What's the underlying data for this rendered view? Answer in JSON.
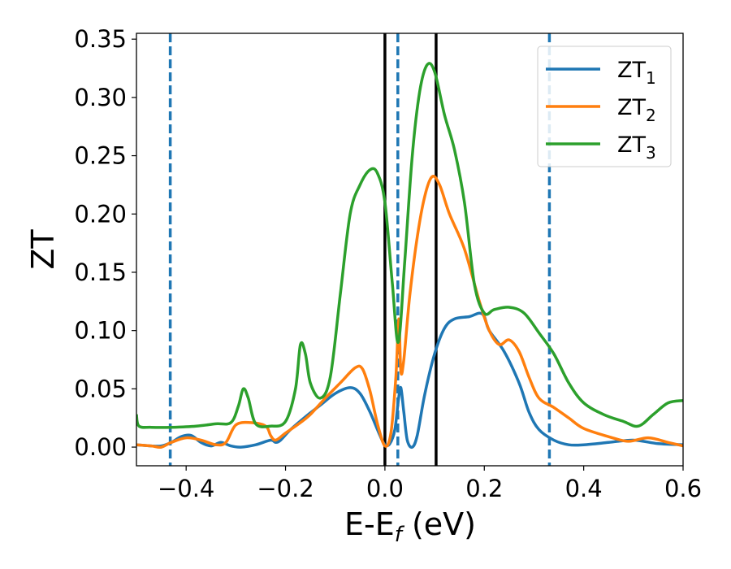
{
  "chart_data": {
    "type": "line",
    "xlabel_main": "E-E",
    "xlabel_sub": "f",
    "xlabel_unit": " (eV)",
    "ylabel": "ZT",
    "xlim": [
      -0.5,
      0.6
    ],
    "ylim": [
      -0.016,
      0.355
    ],
    "xticks": [
      -0.4,
      -0.2,
      0.0,
      0.2,
      0.4,
      0.6
    ],
    "xtick_labels": [
      "−0.4",
      "−0.2",
      "0.0",
      "0.2",
      "0.4",
      "0.6"
    ],
    "yticks": [
      0.0,
      0.05,
      0.1,
      0.15,
      0.2,
      0.25,
      0.3,
      0.35
    ],
    "ytick_labels": [
      "0.00",
      "0.05",
      "0.10",
      "0.15",
      "0.20",
      "0.25",
      "0.30",
      "0.35"
    ],
    "grid": false,
    "legend_position": "top-right",
    "vlines_solid": [
      0.0,
      0.103
    ],
    "vlines_dashed": [
      -0.432,
      0.026,
      0.331
    ],
    "vline_solid_color": "#000000",
    "vline_dashed_color": "#1f77b4",
    "series": [
      {
        "name_main": "ZT",
        "name_sub": "1",
        "color": "#1f77b4",
        "points": [
          [
            -0.5,
            0.002
          ],
          [
            -0.47,
            0.001
          ],
          [
            -0.45,
            0.001
          ],
          [
            -0.43,
            0.004
          ],
          [
            -0.41,
            0.009
          ],
          [
            -0.39,
            0.01
          ],
          [
            -0.37,
            0.004
          ],
          [
            -0.35,
            0.001
          ],
          [
            -0.33,
            0.004
          ],
          [
            -0.31,
            0.001
          ],
          [
            -0.29,
            0.0
          ],
          [
            -0.26,
            0.002
          ],
          [
            -0.23,
            0.006
          ],
          [
            -0.22,
            0.004
          ],
          [
            -0.21,
            0.006
          ],
          [
            -0.19,
            0.015
          ],
          [
            -0.16,
            0.026
          ],
          [
            -0.13,
            0.036
          ],
          [
            -0.1,
            0.046
          ],
          [
            -0.07,
            0.051
          ],
          [
            -0.05,
            0.046
          ],
          [
            -0.03,
            0.03
          ],
          [
            -0.01,
            0.01
          ],
          [
            0.0,
            0.002
          ],
          [
            0.01,
            0.003
          ],
          [
            0.02,
            0.015
          ],
          [
            0.027,
            0.04
          ],
          [
            0.032,
            0.051
          ],
          [
            0.038,
            0.03
          ],
          [
            0.045,
            0.006
          ],
          [
            0.055,
            0.0
          ],
          [
            0.065,
            0.01
          ],
          [
            0.08,
            0.045
          ],
          [
            0.1,
            0.08
          ],
          [
            0.12,
            0.102
          ],
          [
            0.14,
            0.11
          ],
          [
            0.17,
            0.112
          ],
          [
            0.19,
            0.115
          ],
          [
            0.2,
            0.112
          ],
          [
            0.21,
            0.1
          ],
          [
            0.24,
            0.082
          ],
          [
            0.27,
            0.055
          ],
          [
            0.29,
            0.03
          ],
          [
            0.31,
            0.015
          ],
          [
            0.34,
            0.006
          ],
          [
            0.37,
            0.002
          ],
          [
            0.4,
            0.002
          ],
          [
            0.45,
            0.004
          ],
          [
            0.5,
            0.006
          ],
          [
            0.55,
            0.003
          ],
          [
            0.6,
            0.002
          ]
        ]
      },
      {
        "name_main": "ZT",
        "name_sub": "2",
        "color": "#ff7f0e",
        "points": [
          [
            -0.5,
            0.002
          ],
          [
            -0.47,
            0.001
          ],
          [
            -0.45,
            0.0
          ],
          [
            -0.43,
            0.004
          ],
          [
            -0.4,
            0.008
          ],
          [
            -0.37,
            0.006
          ],
          [
            -0.34,
            0.002
          ],
          [
            -0.32,
            0.004
          ],
          [
            -0.3,
            0.019
          ],
          [
            -0.27,
            0.021
          ],
          [
            -0.24,
            0.018
          ],
          [
            -0.23,
            0.01
          ],
          [
            -0.22,
            0.006
          ],
          [
            -0.2,
            0.012
          ],
          [
            -0.17,
            0.021
          ],
          [
            -0.15,
            0.028
          ],
          [
            -0.12,
            0.042
          ],
          [
            -0.09,
            0.055
          ],
          [
            -0.06,
            0.068
          ],
          [
            -0.045,
            0.067
          ],
          [
            -0.03,
            0.048
          ],
          [
            -0.015,
            0.02
          ],
          [
            0.0,
            0.001
          ],
          [
            0.012,
            0.012
          ],
          [
            0.022,
            0.06
          ],
          [
            0.028,
            0.11
          ],
          [
            0.032,
            0.065
          ],
          [
            0.038,
            0.075
          ],
          [
            0.05,
            0.13
          ],
          [
            0.065,
            0.18
          ],
          [
            0.08,
            0.215
          ],
          [
            0.095,
            0.232
          ],
          [
            0.11,
            0.225
          ],
          [
            0.13,
            0.2
          ],
          [
            0.16,
            0.17
          ],
          [
            0.19,
            0.125
          ],
          [
            0.21,
            0.1
          ],
          [
            0.23,
            0.088
          ],
          [
            0.25,
            0.092
          ],
          [
            0.27,
            0.082
          ],
          [
            0.29,
            0.06
          ],
          [
            0.31,
            0.042
          ],
          [
            0.34,
            0.034
          ],
          [
            0.37,
            0.025
          ],
          [
            0.4,
            0.016
          ],
          [
            0.45,
            0.009
          ],
          [
            0.49,
            0.005
          ],
          [
            0.53,
            0.008
          ],
          [
            0.57,
            0.004
          ],
          [
            0.6,
            0.001
          ]
        ]
      },
      {
        "name_main": "ZT",
        "name_sub": "3",
        "color": "#2ca02c",
        "points": [
          [
            -0.5,
            0.028
          ],
          [
            -0.495,
            0.018
          ],
          [
            -0.47,
            0.017
          ],
          [
            -0.43,
            0.017
          ],
          [
            -0.38,
            0.018
          ],
          [
            -0.34,
            0.02
          ],
          [
            -0.31,
            0.021
          ],
          [
            -0.295,
            0.035
          ],
          [
            -0.285,
            0.05
          ],
          [
            -0.275,
            0.042
          ],
          [
            -0.26,
            0.02
          ],
          [
            -0.23,
            0.018
          ],
          [
            -0.2,
            0.022
          ],
          [
            -0.18,
            0.05
          ],
          [
            -0.17,
            0.088
          ],
          [
            -0.16,
            0.08
          ],
          [
            -0.15,
            0.055
          ],
          [
            -0.13,
            0.042
          ],
          [
            -0.11,
            0.06
          ],
          [
            -0.09,
            0.13
          ],
          [
            -0.07,
            0.2
          ],
          [
            -0.05,
            0.225
          ],
          [
            -0.03,
            0.238
          ],
          [
            -0.015,
            0.235
          ],
          [
            0.0,
            0.21
          ],
          [
            0.015,
            0.14
          ],
          [
            0.027,
            0.09
          ],
          [
            0.04,
            0.16
          ],
          [
            0.055,
            0.25
          ],
          [
            0.07,
            0.305
          ],
          [
            0.085,
            0.328
          ],
          [
            0.1,
            0.322
          ],
          [
            0.12,
            0.285
          ],
          [
            0.14,
            0.255
          ],
          [
            0.16,
            0.21
          ],
          [
            0.18,
            0.14
          ],
          [
            0.2,
            0.115
          ],
          [
            0.22,
            0.118
          ],
          [
            0.25,
            0.12
          ],
          [
            0.28,
            0.115
          ],
          [
            0.31,
            0.098
          ],
          [
            0.34,
            0.08
          ],
          [
            0.37,
            0.055
          ],
          [
            0.4,
            0.038
          ],
          [
            0.44,
            0.028
          ],
          [
            0.48,
            0.022
          ],
          [
            0.51,
            0.018
          ],
          [
            0.54,
            0.028
          ],
          [
            0.57,
            0.038
          ],
          [
            0.6,
            0.04
          ]
        ]
      }
    ]
  }
}
